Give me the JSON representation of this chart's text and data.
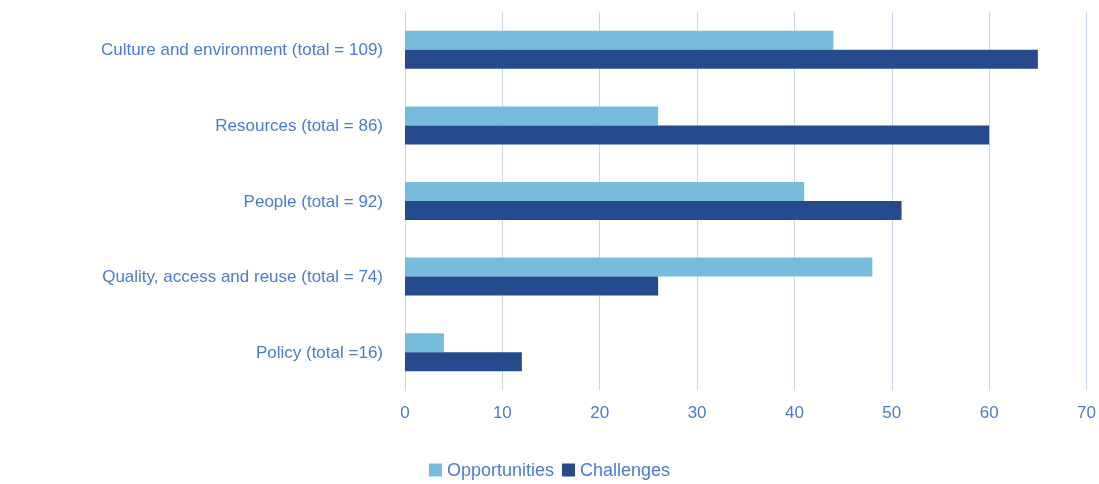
{
  "chart_data": {
    "type": "bar",
    "orientation": "horizontal",
    "categories": [
      "Culture and environment (total = 109)",
      "Resources (total = 86)",
      "People (total = 92)",
      "Quality, access and reuse (total = 74)",
      "Policy (total =16)"
    ],
    "series": [
      {
        "name": "Opportunities",
        "color": "#77bbdd",
        "values": [
          44,
          26,
          41,
          48,
          4
        ]
      },
      {
        "name": "Challenges",
        "color": "#264b8c",
        "values": [
          65,
          60,
          51,
          26,
          12
        ]
      }
    ],
    "xlim": [
      0,
      70
    ],
    "xticks": [
      0,
      10,
      20,
      30,
      40,
      50,
      60,
      70
    ],
    "grid": "x",
    "legend": "bottom"
  }
}
